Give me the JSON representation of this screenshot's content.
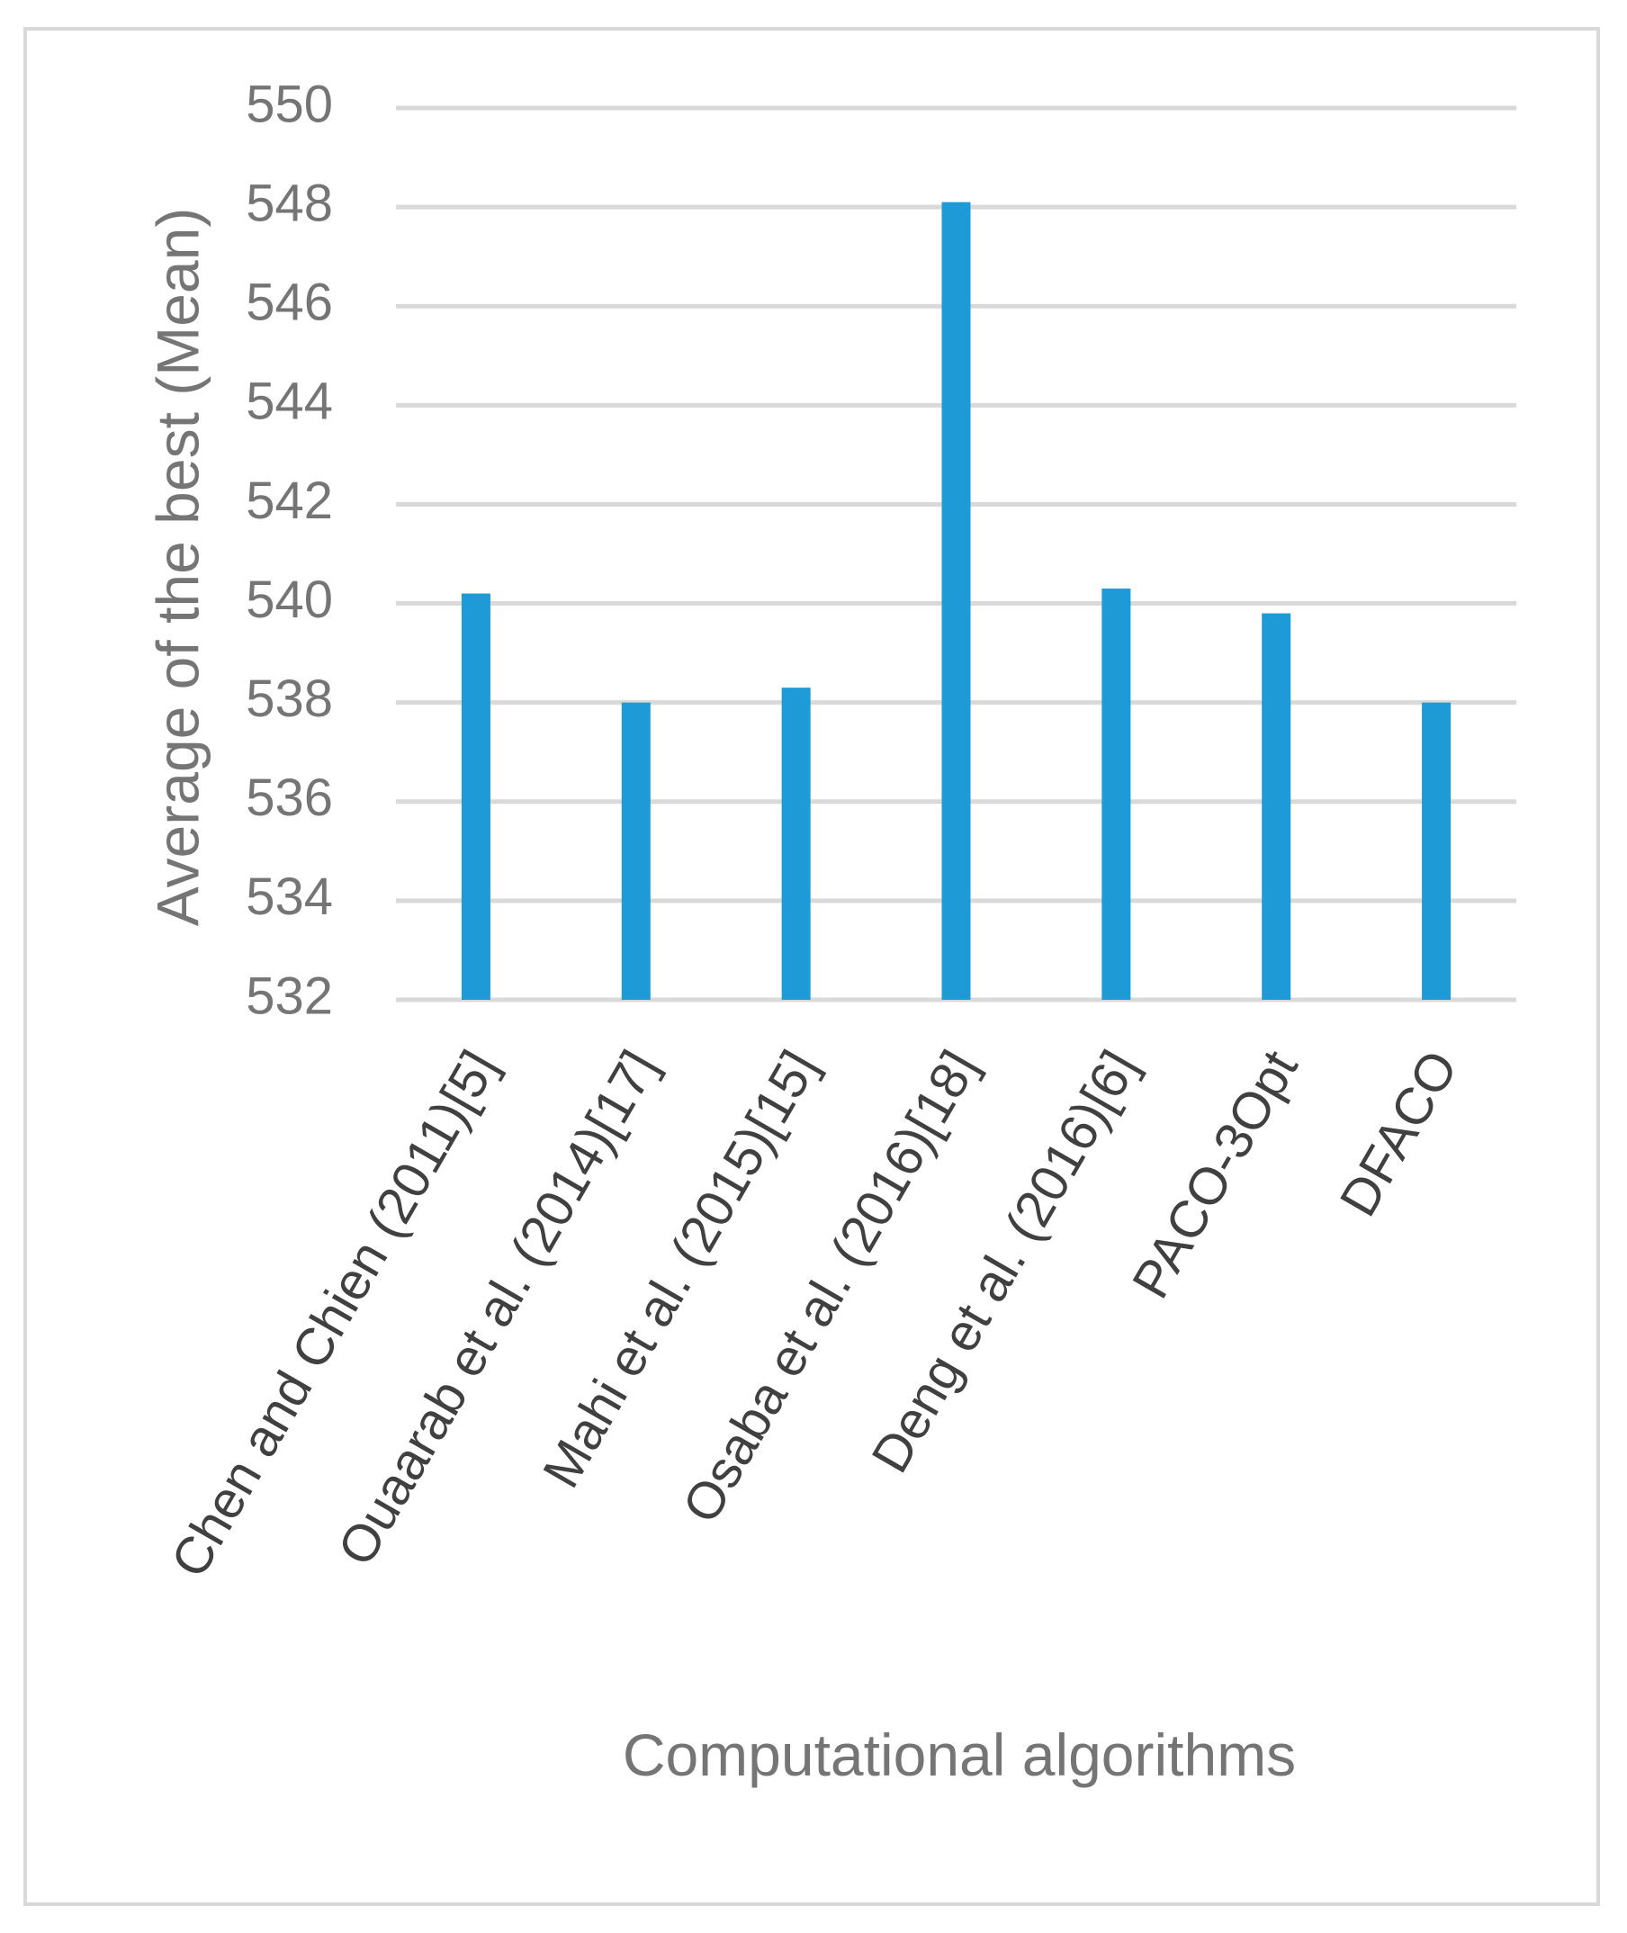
{
  "chart_data": {
    "type": "bar",
    "title": "",
    "xlabel": "Computational algorithms",
    "ylabel": "Average of the best  (Mean)",
    "categories": [
      "Chen and Chien (2011)[5]",
      "Ouaarab et al. (2014)[17]",
      "Mahi et al. (2015)[15]",
      "Osaba et al. (2016)[18]",
      "Deng et al. (2016)[6]",
      "PACO-3Opt",
      "DFACO"
    ],
    "series": [
      {
        "name": "Average of the best (Mean)",
        "values": [
          540.2,
          538.0,
          538.3,
          548.1,
          540.3,
          539.8,
          538.0
        ]
      }
    ],
    "ylim": [
      532,
      550
    ],
    "yticks": [
      "532",
      "534",
      "536",
      "538",
      "540",
      "542",
      "544",
      "546",
      "548",
      "550"
    ],
    "grid": true,
    "bar_color": "#1e9bd7",
    "grid_color": "#d9d9d9"
  }
}
